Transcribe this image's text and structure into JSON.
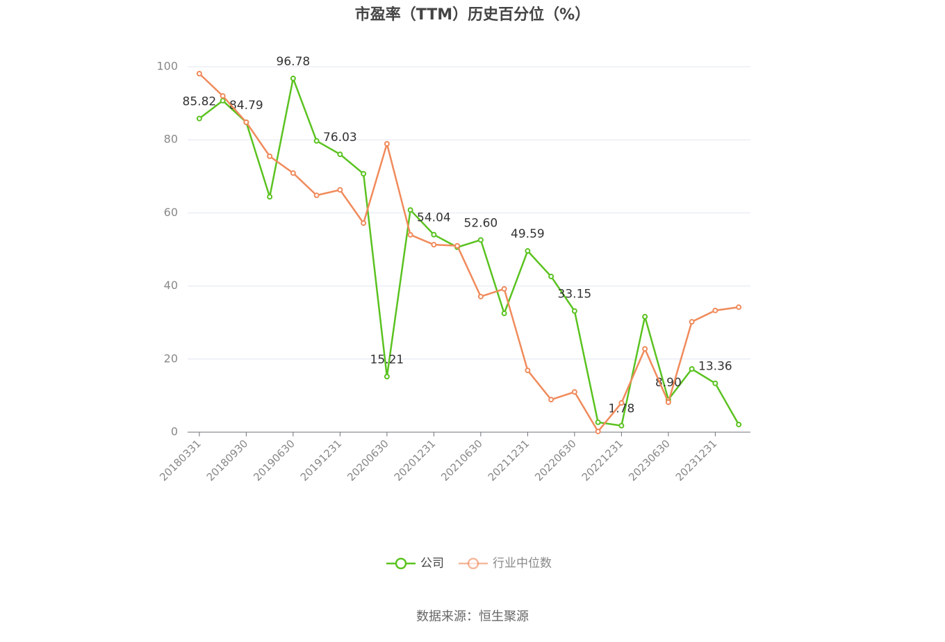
{
  "chart_data": {
    "type": "line",
    "title": "市盈率（TTM）历史百分位（%）",
    "categories": [
      "20180331",
      null,
      "20180930",
      null,
      "20190630",
      null,
      "20191231",
      null,
      "20200630",
      null,
      "20201231",
      null,
      "20210630",
      null,
      "20211231",
      null,
      "20220630",
      null,
      "20221231",
      null,
      "20230630",
      null,
      "20231231",
      null
    ],
    "series": [
      {
        "name": "公司",
        "color": "#5ac220",
        "values": [
          85.82,
          90.7,
          84.79,
          64.4,
          96.78,
          79.7,
          76.03,
          70.7,
          15.21,
          60.8,
          54.04,
          50.6,
          52.6,
          32.5,
          49.59,
          42.6,
          33.15,
          2.7,
          1.78,
          31.6,
          8.9,
          17.3,
          13.36,
          2.1
        ],
        "value_labels": [
          "85.82",
          null,
          "84.79",
          null,
          "96.78",
          null,
          "76.03",
          null,
          "15.21",
          null,
          "54.04",
          null,
          "52.60",
          null,
          "49.59",
          null,
          "33.15",
          null,
          "1.78",
          null,
          "8.90",
          null,
          "13.36",
          null
        ]
      },
      {
        "name": "行业中位数",
        "color": "#f08a5b",
        "values": [
          98.1,
          92.0,
          84.8,
          75.5,
          70.9,
          64.8,
          66.3,
          57.2,
          78.9,
          54.0,
          51.3,
          51.0,
          37.1,
          39.2,
          16.9,
          8.9,
          11.0,
          0.2,
          8.0,
          22.8,
          8.2,
          30.2,
          33.3,
          34.2
        ]
      }
    ],
    "ylim": [
      0,
      100
    ],
    "yticks": [
      0,
      20,
      40,
      60,
      80,
      100
    ],
    "grid": true,
    "source": "数据来源：恒生聚源"
  }
}
